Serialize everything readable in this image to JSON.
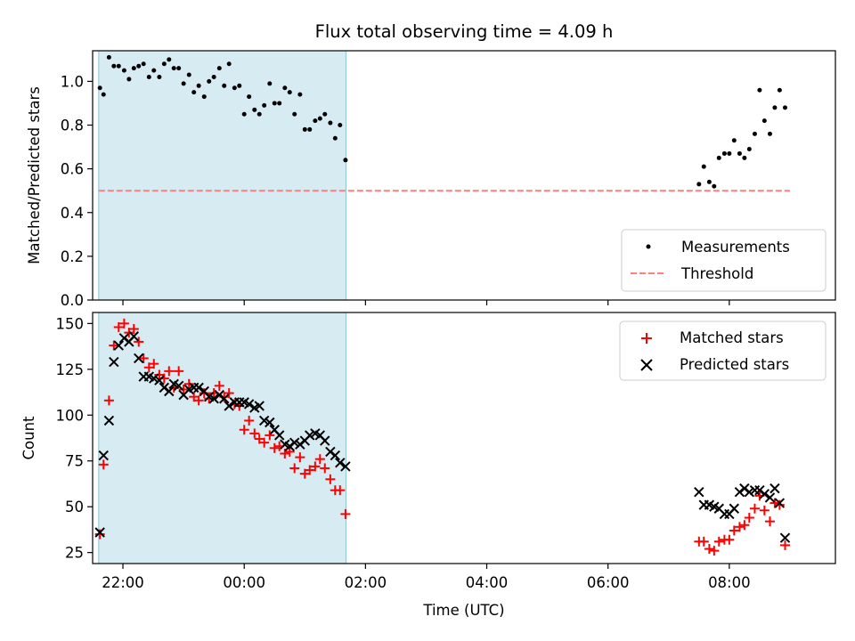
{
  "chart_data": [
    {
      "type": "scatter",
      "title": "Flux total observing time = 4.09 h",
      "ylabel": "Matched/Predicted stars",
      "xlabel": "",
      "xlim_hours": [
        -2.5,
        9.75
      ],
      "ylim": [
        0,
        1.14
      ],
      "yticks": [
        0.0,
        0.2,
        0.4,
        0.6,
        0.8,
        1.0
      ],
      "ytick_labels": [
        "0.0",
        "0.2",
        "0.4",
        "0.6",
        "0.8",
        "1.0"
      ],
      "grid": false,
      "legend_placement": "lower-right",
      "shaded_interval_hours": [
        -2.4,
        1.68
      ],
      "threshold": {
        "name": "Threshold",
        "value": 0.5,
        "x_range_hours": [
          -2.4,
          9.0
        ],
        "color": "#ff7f7f"
      },
      "series": [
        {
          "name": "Measurements",
          "color": "#000000",
          "x": [
            -2.38,
            -2.32,
            -2.23,
            -2.15,
            -2.07,
            -1.98,
            -1.9,
            -1.82,
            -1.74,
            -1.66,
            -1.57,
            -1.49,
            -1.4,
            -1.32,
            -1.24,
            -1.16,
            -1.08,
            -1.0,
            -0.91,
            -0.83,
            -0.75,
            -0.66,
            -0.58,
            -0.5,
            -0.41,
            -0.33,
            -0.25,
            -0.16,
            -0.08,
            0.0,
            0.08,
            0.17,
            0.25,
            0.33,
            0.42,
            0.5,
            0.58,
            0.67,
            0.75,
            0.83,
            0.92,
            1.0,
            1.08,
            1.17,
            1.25,
            1.33,
            1.42,
            1.5,
            1.58,
            1.67,
            7.5,
            7.58,
            7.67,
            7.75,
            7.83,
            7.92,
            8.0,
            8.08,
            8.17,
            8.25,
            8.33,
            8.42,
            8.5,
            8.58,
            8.67,
            8.75,
            8.83,
            8.92
          ],
          "y": [
            0.97,
            0.94,
            1.11,
            1.07,
            1.07,
            1.05,
            1.01,
            1.06,
            1.07,
            1.08,
            1.02,
            1.05,
            1.02,
            1.08,
            1.1,
            1.06,
            1.06,
            0.99,
            1.03,
            0.95,
            0.98,
            0.93,
            1.0,
            1.02,
            1.06,
            0.98,
            1.08,
            0.97,
            0.98,
            0.85,
            0.93,
            0.87,
            0.85,
            0.89,
            0.99,
            0.9,
            0.9,
            0.97,
            0.95,
            0.85,
            0.94,
            0.78,
            0.78,
            0.82,
            0.83,
            0.85,
            0.81,
            0.74,
            0.8,
            0.64,
            0.53,
            0.61,
            0.54,
            0.52,
            0.65,
            0.67,
            0.67,
            0.73,
            0.67,
            0.65,
            0.69,
            0.76,
            0.96,
            0.82,
            0.76,
            0.88,
            0.96,
            0.88
          ]
        }
      ]
    },
    {
      "type": "scatter",
      "title": "",
      "ylabel": "Count",
      "xlabel": "Time (UTC)",
      "xlim_hours": [
        -2.5,
        9.75
      ],
      "ylim": [
        19,
        156
      ],
      "yticks": [
        25,
        50,
        75,
        100,
        125,
        150
      ],
      "ytick_labels": [
        "25",
        "50",
        "75",
        "100",
        "125",
        "150"
      ],
      "xticks_hours": [
        -2,
        0,
        2,
        4,
        6,
        8
      ],
      "xtick_labels": [
        "22:00",
        "00:00",
        "02:00",
        "04:00",
        "06:00",
        "08:00"
      ],
      "grid": false,
      "legend_placement": "upper-right",
      "shaded_interval_hours": [
        -2.4,
        1.68
      ],
      "series": [
        {
          "name": "Matched stars",
          "marker": "+",
          "color": "#ff0000",
          "x": [
            -2.38,
            -2.32,
            -2.23,
            -2.15,
            -2.07,
            -1.98,
            -1.9,
            -1.82,
            -1.74,
            -1.66,
            -1.57,
            -1.49,
            -1.4,
            -1.32,
            -1.24,
            -1.16,
            -1.08,
            -1.0,
            -0.91,
            -0.83,
            -0.75,
            -0.66,
            -0.58,
            -0.5,
            -0.41,
            -0.33,
            -0.25,
            -0.16,
            -0.08,
            0.0,
            0.08,
            0.17,
            0.25,
            0.33,
            0.42,
            0.5,
            0.58,
            0.67,
            0.75,
            0.83,
            0.92,
            1.0,
            1.08,
            1.17,
            1.25,
            1.33,
            1.42,
            1.5,
            1.58,
            1.67,
            7.5,
            7.58,
            7.67,
            7.75,
            7.83,
            7.92,
            8.0,
            8.08,
            8.17,
            8.25,
            8.33,
            8.42,
            8.5,
            8.58,
            8.67,
            8.75,
            8.83,
            8.92
          ],
          "y": [
            35,
            73,
            108,
            138,
            148,
            150,
            145,
            147,
            140,
            131,
            126,
            128,
            122,
            120,
            124,
            115,
            124,
            114,
            117,
            110,
            108,
            112,
            109,
            112,
            116,
            110,
            112,
            106,
            105,
            92,
            97,
            90,
            87,
            85,
            89,
            82,
            83,
            79,
            80,
            71,
            77,
            68,
            70,
            72,
            76,
            71,
            65,
            59,
            59,
            46,
            31,
            31,
            27,
            26,
            31,
            32,
            32,
            37,
            39,
            40,
            44,
            49,
            56,
            48,
            42,
            52,
            51,
            29
          ]
        },
        {
          "name": "Predicted stars",
          "marker": "x",
          "color": "#000000",
          "x": [
            -2.38,
            -2.32,
            -2.23,
            -2.15,
            -2.07,
            -1.98,
            -1.9,
            -1.82,
            -1.74,
            -1.66,
            -1.57,
            -1.49,
            -1.4,
            -1.32,
            -1.24,
            -1.16,
            -1.08,
            -1.0,
            -0.91,
            -0.83,
            -0.75,
            -0.66,
            -0.58,
            -0.5,
            -0.41,
            -0.33,
            -0.25,
            -0.16,
            -0.08,
            0.0,
            0.08,
            0.17,
            0.25,
            0.33,
            0.42,
            0.5,
            0.58,
            0.67,
            0.75,
            0.83,
            0.92,
            1.0,
            1.08,
            1.17,
            1.25,
            1.33,
            1.42,
            1.5,
            1.58,
            1.67,
            7.5,
            7.58,
            7.67,
            7.75,
            7.83,
            7.92,
            8.0,
            8.08,
            8.17,
            8.25,
            8.33,
            8.42,
            8.5,
            8.58,
            8.67,
            8.75,
            8.83,
            8.92
          ],
          "y": [
            36,
            78,
            97,
            129,
            138,
            142,
            140,
            143,
            131,
            121,
            121,
            120,
            119,
            115,
            113,
            117,
            116,
            111,
            114,
            115,
            115,
            113,
            110,
            109,
            111,
            109,
            105,
            107,
            107,
            107,
            106,
            104,
            105,
            97,
            96,
            92,
            89,
            84,
            83,
            85,
            84,
            86,
            89,
            90,
            89,
            86,
            80,
            78,
            74,
            72,
            58,
            51,
            51,
            50,
            49,
            46,
            46,
            49,
            58,
            60,
            58,
            59,
            59,
            57,
            55,
            60,
            52,
            33
          ]
        }
      ]
    }
  ]
}
